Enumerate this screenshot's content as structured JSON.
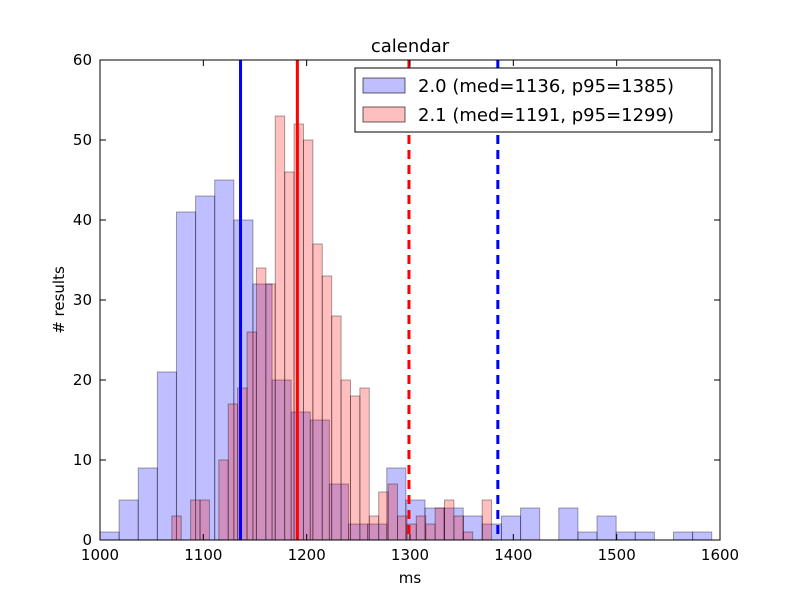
{
  "chart_data": {
    "type": "bar",
    "title": "calendar",
    "xlabel": "ms",
    "ylabel": "# results",
    "xlim": [
      1000,
      1600
    ],
    "ylim": [
      0,
      60
    ],
    "xticks": [
      "1000",
      "1100",
      "1200",
      "1300",
      "1400",
      "1500",
      "1600"
    ],
    "yticks": [
      "0",
      "10",
      "20",
      "30",
      "40",
      "50",
      "60"
    ],
    "grid": false,
    "legend_position": "top-right",
    "series": [
      {
        "name": "2.0 (med=1136, p95=1385)",
        "color": "#0000ff",
        "bin_width": 18.5,
        "bins": [
          [
            1000,
            1
          ],
          [
            1018.5,
            5
          ],
          [
            1037,
            9
          ],
          [
            1055.5,
            21
          ],
          [
            1074,
            41
          ],
          [
            1092.5,
            43
          ],
          [
            1111,
            45
          ],
          [
            1129.5,
            40
          ],
          [
            1148,
            32
          ],
          [
            1166.5,
            20
          ],
          [
            1185,
            16
          ],
          [
            1203.5,
            15
          ],
          [
            1222,
            7
          ],
          [
            1240.5,
            2
          ],
          [
            1259,
            2
          ],
          [
            1277.5,
            9
          ],
          [
            1296,
            5
          ],
          [
            1314.5,
            4
          ],
          [
            1333,
            4
          ],
          [
            1351.5,
            3
          ],
          [
            1370,
            2
          ],
          [
            1388.5,
            3
          ],
          [
            1407,
            4
          ],
          [
            1425.5,
            0
          ],
          [
            1444,
            4
          ],
          [
            1462.5,
            1
          ],
          [
            1481,
            3
          ],
          [
            1499.5,
            1
          ],
          [
            1518,
            1
          ],
          [
            1536.5,
            0
          ],
          [
            1555,
            1
          ],
          [
            1573.5,
            1
          ]
        ],
        "median": 1136,
        "p95": 1385
      },
      {
        "name": "2.1 (med=1191, p95=1299)",
        "color": "#ff0000",
        "bin_width": 9.1,
        "bins": [
          [
            1069.5,
            3
          ],
          [
            1078.6,
            0
          ],
          [
            1087.7,
            5
          ],
          [
            1096.8,
            5
          ],
          [
            1105.9,
            0
          ],
          [
            1115,
            10
          ],
          [
            1124.1,
            17
          ],
          [
            1133.2,
            19
          ],
          [
            1142.3,
            26
          ],
          [
            1151.4,
            34
          ],
          [
            1160.5,
            32
          ],
          [
            1169.6,
            53
          ],
          [
            1178.7,
            46
          ],
          [
            1187.8,
            52
          ],
          [
            1196.9,
            50
          ],
          [
            1206,
            37
          ],
          [
            1215.1,
            33
          ],
          [
            1224.2,
            28
          ],
          [
            1233.3,
            20
          ],
          [
            1242.4,
            18
          ],
          [
            1251.5,
            19
          ],
          [
            1260.6,
            3
          ],
          [
            1269.7,
            6
          ],
          [
            1278.8,
            7
          ],
          [
            1287.9,
            3
          ],
          [
            1297,
            2
          ],
          [
            1306.1,
            3
          ],
          [
            1315.2,
            2
          ],
          [
            1324.3,
            4
          ],
          [
            1333.4,
            5
          ],
          [
            1342.5,
            3
          ],
          [
            1351.6,
            1
          ],
          [
            1360.7,
            0
          ],
          [
            1369.8,
            5
          ]
        ],
        "median": 1191,
        "p95": 1299
      }
    ],
    "median_lines": [
      {
        "value": 1136,
        "color": "#0000ff",
        "style": "solid"
      },
      {
        "value": 1191,
        "color": "#ff0000",
        "style": "solid"
      }
    ],
    "p95_lines": [
      {
        "value": 1385,
        "color": "#0000ff",
        "style": "dashed"
      },
      {
        "value": 1299,
        "color": "#ff0000",
        "style": "dashed"
      }
    ]
  }
}
